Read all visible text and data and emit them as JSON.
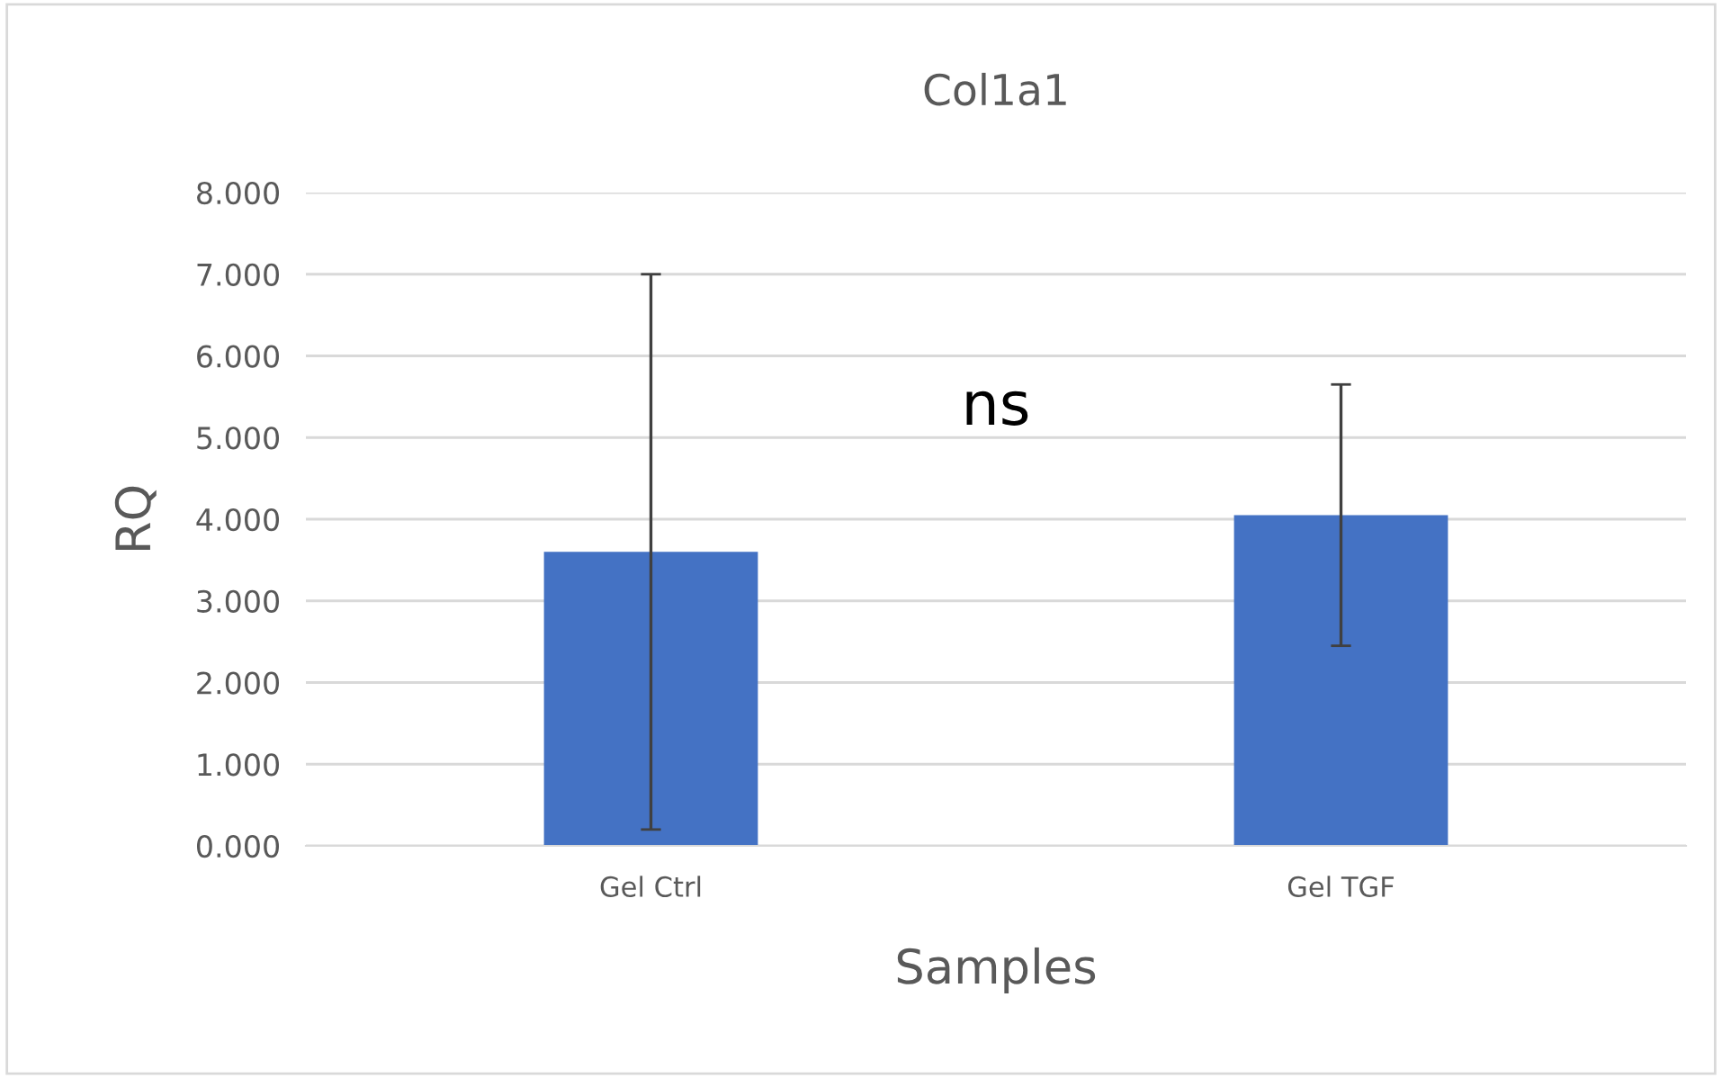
{
  "chart_data": {
    "type": "bar",
    "title": "Col1a1",
    "xlabel": "Samples",
    "ylabel": "RQ",
    "categories": [
      "Gel Ctrl",
      "Gel TGF"
    ],
    "values": [
      3.6,
      4.05
    ],
    "errors": [
      3.4,
      1.6
    ],
    "color": "#4472c4",
    "ylim": [
      0,
      8
    ],
    "yticks": [
      {
        "value": 0,
        "label": "0.000"
      },
      {
        "value": 1,
        "label": "1.000"
      },
      {
        "value": 2,
        "label": "2.000"
      },
      {
        "value": 3,
        "label": "3.000"
      },
      {
        "value": 4,
        "label": "4.000"
      },
      {
        "value": 5,
        "label": "5.000"
      },
      {
        "value": 6,
        "label": "6.000"
      },
      {
        "value": 7,
        "label": "7.000"
      },
      {
        "value": 8,
        "label": "8.000"
      }
    ],
    "grid": "y",
    "annotations": [
      "ns"
    ]
  }
}
